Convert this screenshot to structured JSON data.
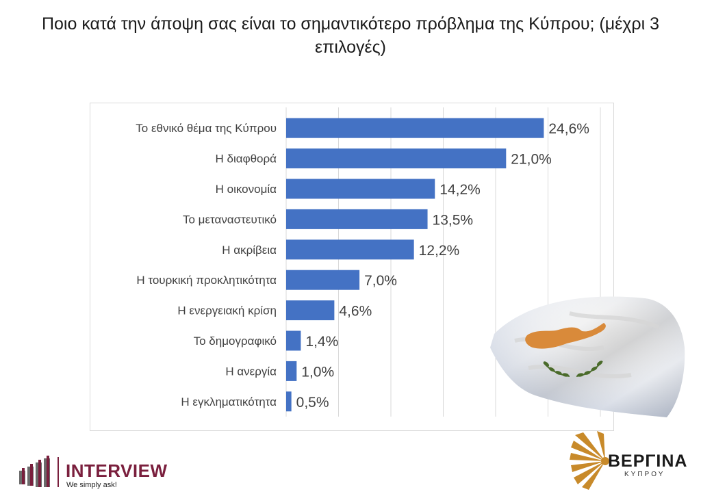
{
  "title": "Ποιο κατά την άποψη σας είναι το σημαντικότερο πρόβλημα της Κύπρου; (μέχρι 3 επιλογές)",
  "chart_data": {
    "type": "bar",
    "orientation": "horizontal",
    "categories": [
      "Το εθνικό θέμα της Κύπρου",
      "Η διαφθορά",
      "Η οικονομία",
      "Το μεταναστευτικό",
      "Η ακρίβεια",
      "Η τουρκική προκλητικότητα",
      "Η ενεργειακή κρίση",
      "Το δημογραφικό",
      "Η ανεργία",
      "Η εγκληματικότητα"
    ],
    "values": [
      24.6,
      21.0,
      14.2,
      13.5,
      12.2,
      7.0,
      4.6,
      1.4,
      1.0,
      0.5
    ],
    "value_labels": [
      "24,6%",
      "21,0%",
      "14,2%",
      "13,5%",
      "12,2%",
      "7,0%",
      "4,6%",
      "1,4%",
      "1,0%",
      "0,5%"
    ],
    "xlim": [
      0,
      30
    ],
    "grid": true,
    "bar_color": "#4472c4"
  },
  "logos": {
    "interview": {
      "name": "INTERVIEW",
      "tagline": "We simply ask!",
      "color": "#7a1f3d"
    },
    "vergina": {
      "name": "ΒΕΡΓΙΝΑ",
      "sub": "ΚΥΠΡΟΥ",
      "color": "#c88a2a"
    }
  },
  "flag": {
    "map_color": "#d98a3a",
    "branch_color": "#4a6b2a"
  }
}
